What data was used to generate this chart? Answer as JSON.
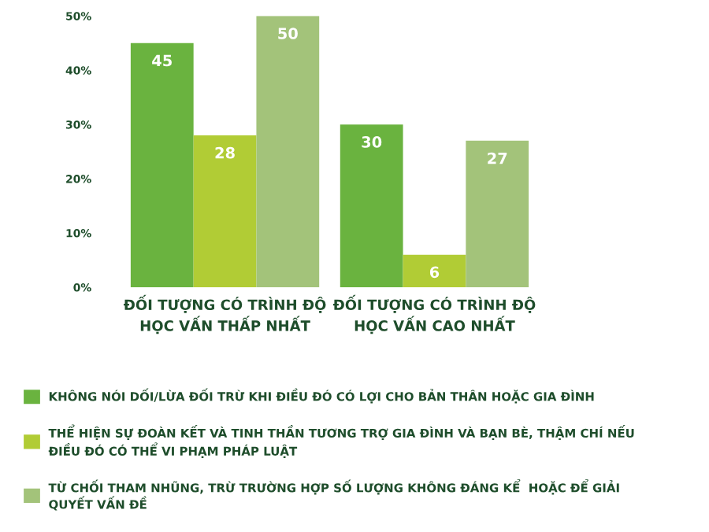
{
  "chart_data": {
    "type": "bar",
    "categories": [
      "ĐỐI TƯỢNG CÓ TRÌNH ĐỘ\nHỌC VẤN THẤP NHẤT",
      "ĐỐI TƯỢNG CÓ TRÌNH ĐỘ\nHỌC VẤN CAO NHẤT"
    ],
    "series": [
      {
        "name": "KHÔNG NÓI DỐI/LỪA ĐỐI TRỪ KHI ĐIỀU ĐÓ CÓ LỢI CHO BẢN THÂN HOẶC GIA ĐÌNH",
        "color": "#6ab33f",
        "values": [
          45,
          30
        ]
      },
      {
        "name": "THỂ HIỆN SỰ ĐOÀN KẾT VÀ TINH THẦN TƯƠNG TRỢ GIA ĐÌNH VÀ BẠN BÈ, THẬM CHÍ NẾU\nĐIỀU ĐÓ CÓ THỂ VI PHẠM PHÁP LUẬT",
        "color": "#b1cc35",
        "values": [
          28,
          6
        ]
      },
      {
        "name": "TỪ CHỐI THAM NHŨNG, TRỪ TRƯỜNG HỢP SỐ LƯỢNG KHÔNG ĐÁNG KỂ  HOẶC ĐỂ GIẢI\nQUYẾT VẤN ĐỀ",
        "color": "#a3c37a",
        "values": [
          50,
          27
        ]
      }
    ],
    "ylim": [
      0,
      50
    ],
    "yticks": [
      {
        "value": 0,
        "label": "0%"
      },
      {
        "value": 10,
        "label": "10%"
      },
      {
        "value": 20,
        "label": "20%"
      },
      {
        "value": 30,
        "label": "30%"
      },
      {
        "value": 40,
        "label": "40%"
      },
      {
        "value": 50,
        "label": "50%"
      }
    ],
    "data_labels": true,
    "legend": "bottom",
    "grid": false
  }
}
